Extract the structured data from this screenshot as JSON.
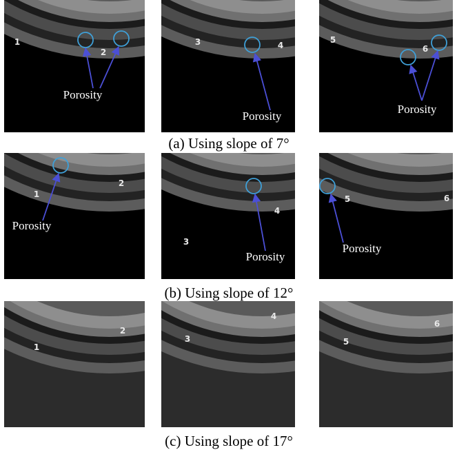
{
  "rows": [
    {
      "caption": "(a) Using slope of 7°",
      "panels": [
        {
          "numbers": [
            "1",
            "2"
          ],
          "annotation": "Porosity"
        },
        {
          "numbers": [
            "3",
            "4"
          ],
          "annotation": "Porosity"
        },
        {
          "numbers": [
            "5",
            "6"
          ],
          "annotation": "Porosity"
        }
      ]
    },
    {
      "caption": "(b) Using slope of 12°",
      "panels": [
        {
          "numbers": [
            "1",
            "2"
          ],
          "annotation": "Porosity"
        },
        {
          "numbers": [
            "3",
            "4"
          ],
          "annotation": "Porosity"
        },
        {
          "numbers": [
            "5",
            "6"
          ],
          "annotation": "Porosity"
        }
      ]
    },
    {
      "caption": "(c) Using slope of 17°",
      "panels": [
        {
          "numbers": [
            "1",
            "2"
          ]
        },
        {
          "numbers": [
            "3",
            "4"
          ]
        },
        {
          "numbers": [
            "5",
            "6"
          ]
        }
      ]
    }
  ]
}
